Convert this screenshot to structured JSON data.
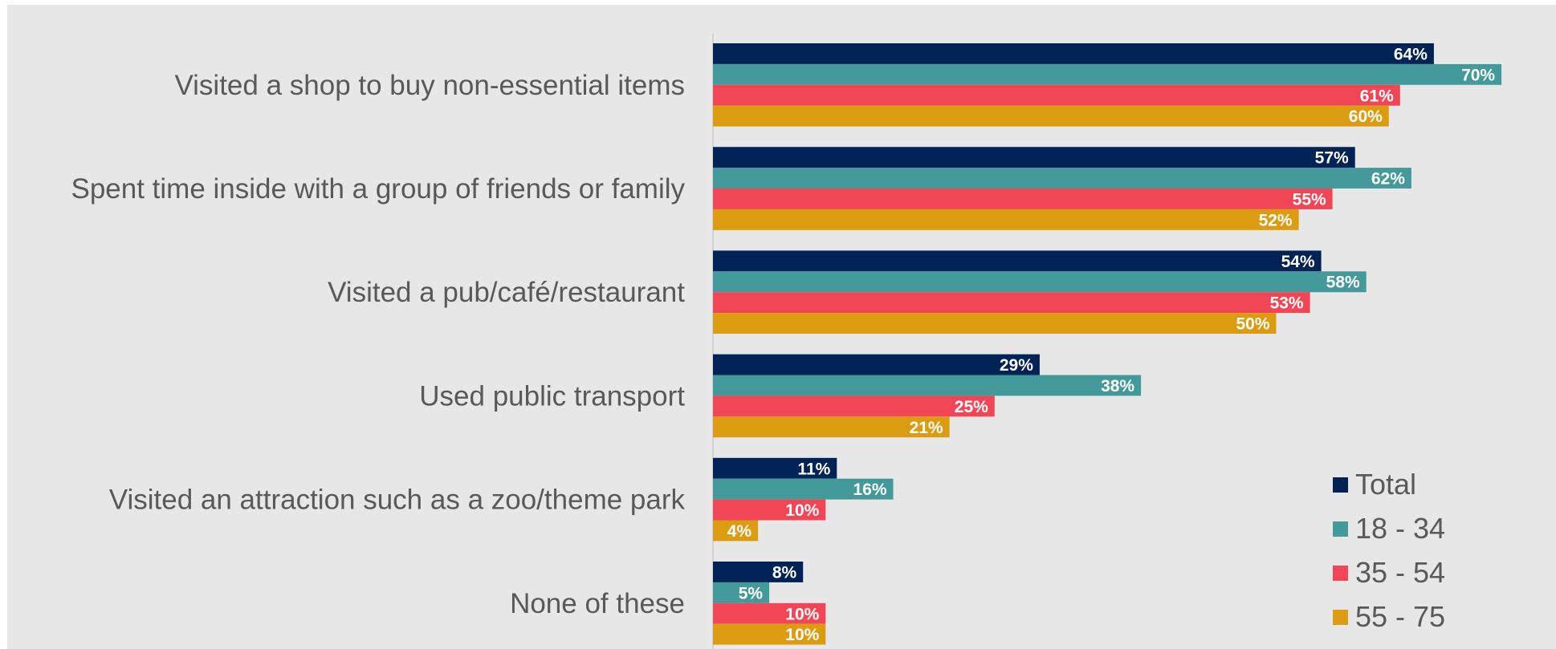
{
  "chart_data": {
    "type": "bar",
    "orientation": "horizontal",
    "categories": [
      "Visited a shop to buy non-essential items",
      "Spent time inside with a group of friends or family",
      "Visited a pub/café/restaurant",
      "Used public transport",
      "Visited an attraction such as a zoo/theme park",
      "None of these"
    ],
    "series": [
      {
        "name": "Total",
        "color": "#002255",
        "values": [
          64,
          57,
          54,
          29,
          11,
          8
        ]
      },
      {
        "name": "18 - 34",
        "color": "#44999a",
        "values": [
          70,
          62,
          58,
          38,
          16,
          5
        ]
      },
      {
        "name": "35 - 54",
        "color": "#f04656",
        "values": [
          61,
          55,
          53,
          25,
          10,
          10
        ]
      },
      {
        "name": "55 - 75",
        "color": "#dc9c12",
        "values": [
          60,
          52,
          50,
          21,
          4,
          10
        ]
      }
    ],
    "value_suffix": "%",
    "xlim": [
      0,
      75
    ],
    "grid": false,
    "legend_position": "bottom-right"
  }
}
